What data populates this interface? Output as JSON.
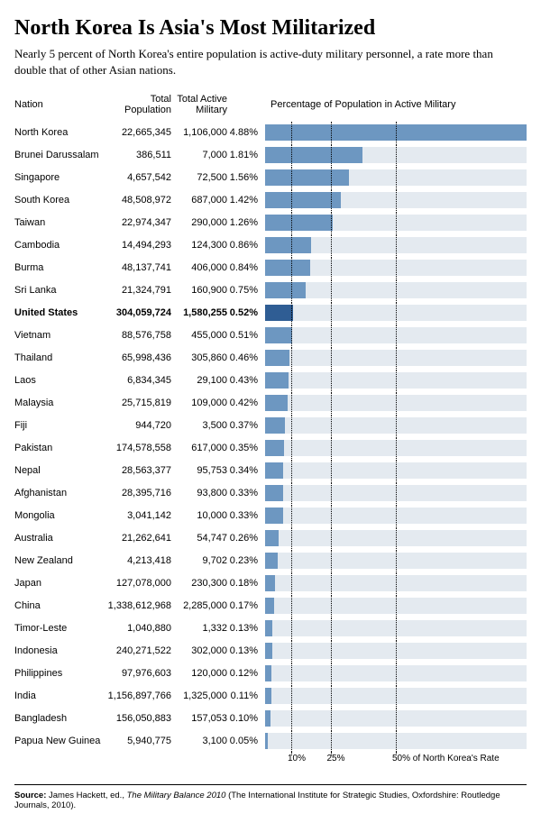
{
  "title": "North Korea Is Asia's Most Militarized",
  "subtitle": "Nearly 5 percent of North Korea's entire population is active-duty military personnel, a rate more than double that of other Asian nations.",
  "headers": {
    "nation": "Nation",
    "population": "Total Population",
    "military": "Total Active Military",
    "pct_chart": "Percentage of Population in Active Military"
  },
  "chart": {
    "type": "bar",
    "bar_bg_color": "#e4eaf0",
    "bar_color": "#6d97c1",
    "bar_color_highlight": "#2f5d94",
    "bar_bg_width_pct": 100,
    "max_value": 4.88,
    "bar_full_scale": 4.88,
    "ref_lines": [
      {
        "value_pct_of_max": 10,
        "label": "10%"
      },
      {
        "value_pct_of_max": 25,
        "label": "25%"
      },
      {
        "value_pct_of_max": 50,
        "label": "50% of North Korea's Rate"
      }
    ]
  },
  "rows": [
    {
      "nation": "North Korea",
      "population": "22,665,345",
      "military": "1,106,000",
      "pct": "4.88%",
      "value": 4.88,
      "bold": false,
      "highlight": false
    },
    {
      "nation": "Brunei Darussalam",
      "population": "386,511",
      "military": "7,000",
      "pct": "1.81%",
      "value": 1.81,
      "bold": false,
      "highlight": false
    },
    {
      "nation": "Singapore",
      "population": "4,657,542",
      "military": "72,500",
      "pct": "1.56%",
      "value": 1.56,
      "bold": false,
      "highlight": false
    },
    {
      "nation": "South Korea",
      "population": "48,508,972",
      "military": "687,000",
      "pct": "1.42%",
      "value": 1.42,
      "bold": false,
      "highlight": false
    },
    {
      "nation": "Taiwan",
      "population": "22,974,347",
      "military": "290,000",
      "pct": "1.26%",
      "value": 1.26,
      "bold": false,
      "highlight": false
    },
    {
      "nation": "Cambodia",
      "population": "14,494,293",
      "military": "124,300",
      "pct": "0.86%",
      "value": 0.86,
      "bold": false,
      "highlight": false
    },
    {
      "nation": "Burma",
      "population": "48,137,741",
      "military": "406,000",
      "pct": "0.84%",
      "value": 0.84,
      "bold": false,
      "highlight": false
    },
    {
      "nation": "Sri Lanka",
      "population": "21,324,791",
      "military": "160,900",
      "pct": "0.75%",
      "value": 0.75,
      "bold": false,
      "highlight": false
    },
    {
      "nation": "United States",
      "population": "304,059,724",
      "military": "1,580,255",
      "pct": "0.52%",
      "value": 0.52,
      "bold": true,
      "highlight": true
    },
    {
      "nation": "Vietnam",
      "population": "88,576,758",
      "military": "455,000",
      "pct": "0.51%",
      "value": 0.51,
      "bold": false,
      "highlight": false
    },
    {
      "nation": "Thailand",
      "population": "65,998,436",
      "military": "305,860",
      "pct": "0.46%",
      "value": 0.46,
      "bold": false,
      "highlight": false
    },
    {
      "nation": "Laos",
      "population": "6,834,345",
      "military": "29,100",
      "pct": "0.43%",
      "value": 0.43,
      "bold": false,
      "highlight": false
    },
    {
      "nation": "Malaysia",
      "population": "25,715,819",
      "military": "109,000",
      "pct": "0.42%",
      "value": 0.42,
      "bold": false,
      "highlight": false
    },
    {
      "nation": "Fiji",
      "population": "944,720",
      "military": "3,500",
      "pct": "0.37%",
      "value": 0.37,
      "bold": false,
      "highlight": false
    },
    {
      "nation": "Pakistan",
      "population": "174,578,558",
      "military": "617,000",
      "pct": "0.35%",
      "value": 0.35,
      "bold": false,
      "highlight": false
    },
    {
      "nation": "Nepal",
      "population": "28,563,377",
      "military": "95,753",
      "pct": "0.34%",
      "value": 0.34,
      "bold": false,
      "highlight": false
    },
    {
      "nation": "Afghanistan",
      "population": "28,395,716",
      "military": "93,800",
      "pct": "0.33%",
      "value": 0.33,
      "bold": false,
      "highlight": false
    },
    {
      "nation": "Mongolia",
      "population": "3,041,142",
      "military": "10,000",
      "pct": "0.33%",
      "value": 0.33,
      "bold": false,
      "highlight": false
    },
    {
      "nation": "Australia",
      "population": "21,262,641",
      "military": "54,747",
      "pct": "0.26%",
      "value": 0.26,
      "bold": false,
      "highlight": false
    },
    {
      "nation": "New Zealand",
      "population": "4,213,418",
      "military": "9,702",
      "pct": "0.23%",
      "value": 0.23,
      "bold": false,
      "highlight": false
    },
    {
      "nation": "Japan",
      "population": "127,078,000",
      "military": "230,300",
      "pct": "0.18%",
      "value": 0.18,
      "bold": false,
      "highlight": false
    },
    {
      "nation": "China",
      "population": "1,338,612,968",
      "military": "2,285,000",
      "pct": "0.17%",
      "value": 0.17,
      "bold": false,
      "highlight": false
    },
    {
      "nation": "Timor-Leste",
      "population": "1,040,880",
      "military": "1,332",
      "pct": "0.13%",
      "value": 0.13,
      "bold": false,
      "highlight": false
    },
    {
      "nation": "Indonesia",
      "population": "240,271,522",
      "military": "302,000",
      "pct": "0.13%",
      "value": 0.13,
      "bold": false,
      "highlight": false
    },
    {
      "nation": "Philippines",
      "population": "97,976,603",
      "military": "120,000",
      "pct": "0.12%",
      "value": 0.12,
      "bold": false,
      "highlight": false
    },
    {
      "nation": "India",
      "population": "1,156,897,766",
      "military": "1,325,000",
      "pct": "0.11%",
      "value": 0.11,
      "bold": false,
      "highlight": false
    },
    {
      "nation": "Bangladesh",
      "population": "156,050,883",
      "military": "157,053",
      "pct": "0.10%",
      "value": 0.1,
      "bold": false,
      "highlight": false
    },
    {
      "nation": "Papua New Guinea",
      "population": "5,940,775",
      "military": "3,100",
      "pct": "0.05%",
      "value": 0.05,
      "bold": false,
      "highlight": false
    }
  ],
  "source": {
    "label": "Source:",
    "pre": " James Hackett, ed., ",
    "italic": "The Military Balance 2010",
    "post": " (The International Institute for Strategic Studies, Oxfordshire: Routledge Journals, 2010)."
  }
}
